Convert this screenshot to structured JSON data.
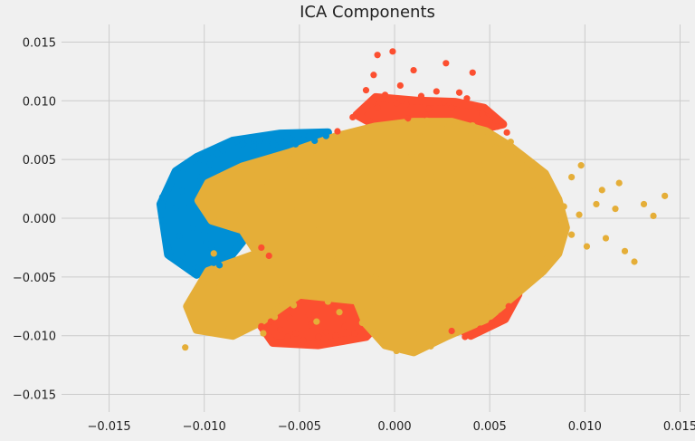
{
  "chart_data": {
    "type": "scatter",
    "title": "ICA Components",
    "xlabel": "",
    "ylabel": "",
    "xlim": [
      -0.0175,
      0.0155
    ],
    "ylim": [
      -0.0165,
      0.0165
    ],
    "xticks": [
      -0.015,
      -0.01,
      -0.005,
      0.0,
      0.005,
      0.01,
      0.015
    ],
    "yticks": [
      -0.015,
      -0.01,
      -0.005,
      0.0,
      0.005,
      0.01,
      0.015
    ],
    "xtick_labels": [
      "−0.015",
      "−0.010",
      "−0.005",
      "0.000",
      "0.005",
      "0.010",
      "0.015"
    ],
    "ytick_labels": [
      "−0.015",
      "−0.010",
      "−0.005",
      "0.000",
      "0.005",
      "0.010",
      "0.015"
    ],
    "grid": true,
    "series": [
      {
        "color": "#008fd5",
        "points": [
          [
            -0.0122,
            0.0018
          ],
          [
            -0.0121,
            -0.0002
          ],
          [
            -0.0119,
            -0.0026
          ],
          [
            -0.0118,
            -0.0033
          ],
          [
            -0.0115,
            0.0009
          ],
          [
            -0.0113,
            -0.0015
          ],
          [
            -0.0112,
            0.0023
          ],
          [
            -0.0111,
            0.0042
          ],
          [
            -0.0109,
            -0.003
          ],
          [
            -0.0108,
            0.0013
          ],
          [
            -0.0106,
            -0.0008
          ],
          [
            -0.0104,
            0.0036
          ],
          [
            -0.0103,
            -0.0042
          ],
          [
            -0.0101,
            0.005
          ],
          [
            -0.0099,
            -0.0021
          ],
          [
            -0.0097,
            0.0046
          ],
          [
            -0.0095,
            -0.0038
          ],
          [
            -0.0093,
            0.0055
          ],
          [
            -0.009,
            0.0058
          ],
          [
            -0.0088,
            -0.003
          ],
          [
            -0.0085,
            0.0062
          ],
          [
            -0.0083,
            0.0049
          ],
          [
            -0.008,
            0.0063
          ],
          [
            -0.0077,
            0.0066
          ],
          [
            -0.0074,
            0.0061
          ],
          [
            -0.0071,
            0.0066
          ],
          [
            -0.0068,
            0.0069
          ],
          [
            -0.0064,
            0.0064
          ],
          [
            -0.0061,
            0.0067
          ],
          [
            -0.0058,
            0.0064
          ],
          [
            -0.0055,
            0.0068
          ],
          [
            -0.0052,
            0.0063
          ],
          [
            -0.0048,
            0.0067
          ],
          [
            -0.0045,
            0.007
          ],
          [
            -0.0042,
            0.0066
          ],
          [
            -0.0039,
            0.0072
          ],
          [
            -0.0036,
            0.007
          ],
          [
            -0.01,
            -0.0012
          ],
          [
            -0.0096,
            -0.0026
          ],
          [
            -0.0092,
            -0.004
          ]
        ]
      },
      {
        "color": "#fc4f30",
        "points": [
          [
            -0.0065,
            -0.0088
          ],
          [
            -0.006,
            -0.0095
          ],
          [
            -0.0056,
            -0.0101
          ],
          [
            -0.0052,
            -0.0098
          ],
          [
            -0.0048,
            -0.0104
          ],
          [
            -0.0044,
            -0.0091
          ],
          [
            -0.004,
            -0.0101
          ],
          [
            -0.0036,
            -0.0097
          ],
          [
            -0.0031,
            -0.01
          ],
          [
            -0.0026,
            -0.0092
          ],
          [
            -0.0021,
            -0.0098
          ],
          [
            -0.0055,
            -0.0085
          ],
          [
            -0.0045,
            -0.0082
          ],
          [
            -0.007,
            -0.0092
          ],
          [
            -0.0009,
            0.0094
          ],
          [
            -0.0005,
            0.0105
          ],
          [
            0.0001,
            0.0098
          ],
          [
            0.0003,
            0.0113
          ],
          [
            0.0006,
            0.0097
          ],
          [
            0.001,
            0.0126
          ],
          [
            0.0014,
            0.0104
          ],
          [
            0.0018,
            0.0093
          ],
          [
            0.0022,
            0.0108
          ],
          [
            0.0026,
            0.0099
          ],
          [
            0.003,
            0.0094
          ],
          [
            0.0034,
            0.0107
          ],
          [
            0.0038,
            0.0102
          ],
          [
            0.0042,
            0.0096
          ],
          [
            0.0046,
            0.0089
          ],
          [
            -0.0009,
            0.0139
          ],
          [
            -0.0001,
            0.0142
          ],
          [
            0.0027,
            0.0132
          ],
          [
            -0.0011,
            0.0122
          ],
          [
            0.0041,
            0.0124
          ],
          [
            -0.0015,
            0.0109
          ],
          [
            0.0007,
            0.0085
          ],
          [
            0.003,
            -0.0096
          ],
          [
            0.0037,
            -0.0101
          ],
          [
            0.0045,
            -0.0094
          ],
          [
            0.0051,
            -0.0089
          ],
          [
            0.0056,
            -0.0083
          ],
          [
            0.006,
            -0.0075
          ],
          [
            -0.007,
            -0.0025
          ],
          [
            -0.0066,
            -0.0032
          ],
          [
            0.0054,
            0.0078
          ],
          [
            0.0059,
            0.0073
          ],
          [
            -0.003,
            0.0074
          ],
          [
            -0.0022,
            0.0086
          ],
          [
            0.0049,
            0.0092
          ],
          [
            0.0016,
            0.0088
          ]
        ]
      },
      {
        "color": "#e5ae38",
        "points": [
          [
            -0.0095,
            -0.003
          ],
          [
            -0.011,
            -0.011
          ],
          [
            -0.0105,
            -0.0091
          ],
          [
            -0.0102,
            -0.0077
          ],
          [
            -0.0098,
            -0.0068
          ],
          [
            -0.0092,
            -0.0059
          ],
          [
            -0.0087,
            -0.0094
          ],
          [
            -0.0081,
            -0.0081
          ],
          [
            -0.0075,
            -0.007
          ],
          [
            -0.0069,
            -0.0098
          ],
          [
            -0.0063,
            -0.0084
          ],
          [
            -0.0059,
            -0.006
          ],
          [
            -0.0053,
            -0.0074
          ],
          [
            -0.0047,
            -0.0066
          ],
          [
            -0.0041,
            -0.0088
          ],
          [
            -0.0035,
            -0.0071
          ],
          [
            -0.0029,
            -0.008
          ],
          [
            -0.0023,
            -0.0063
          ],
          [
            -0.0017,
            -0.0089
          ],
          [
            -0.0011,
            -0.0076
          ],
          [
            -0.0005,
            -0.0069
          ],
          [
            0.0001,
            -0.0113
          ],
          [
            0.0007,
            -0.0104
          ],
          [
            0.0013,
            -0.0098
          ],
          [
            0.0019,
            -0.0109
          ],
          [
            0.0025,
            -0.009
          ],
          [
            0.0031,
            -0.0082
          ],
          [
            0.0037,
            -0.0073
          ],
          [
            0.0043,
            -0.0064
          ],
          [
            0.0049,
            -0.0071
          ],
          [
            0.0055,
            -0.0059
          ],
          [
            0.0061,
            -0.005
          ],
          [
            0.0067,
            -0.0041
          ],
          [
            -0.0083,
            0.0003
          ],
          [
            -0.0079,
            0.0021
          ],
          [
            -0.0075,
            0.004
          ],
          [
            -0.0071,
            0.0012
          ],
          [
            -0.0067,
            0.0031
          ],
          [
            -0.0063,
            -0.0006
          ],
          [
            -0.0059,
            0.0025
          ],
          [
            -0.0055,
            0.0045
          ],
          [
            -0.0051,
            0.0008
          ],
          [
            -0.0047,
            0.0036
          ],
          [
            -0.0043,
            0.0057
          ],
          [
            -0.0039,
            0.0019
          ],
          [
            -0.0035,
            0.0048
          ],
          [
            -0.0031,
            0.0065
          ],
          [
            -0.0027,
            0.0028
          ],
          [
            -0.0023,
            0.0056
          ],
          [
            -0.0019,
            0.0072
          ],
          [
            -0.0015,
            0.0039
          ],
          [
            -0.0011,
            0.0061
          ],
          [
            -0.0007,
            0.0078
          ],
          [
            -0.0003,
            0.0046
          ],
          [
            0.0001,
            0.0069
          ],
          [
            0.0005,
            0.0081
          ],
          [
            0.0009,
            0.0054
          ],
          [
            0.0013,
            0.0073
          ],
          [
            0.0017,
            0.0083
          ],
          [
            0.0021,
            0.0061
          ],
          [
            0.0025,
            0.0077
          ],
          [
            0.0029,
            0.008
          ],
          [
            0.0033,
            0.0059
          ],
          [
            0.0037,
            0.0071
          ],
          [
            0.0041,
            0.0079
          ],
          [
            0.0045,
            0.0066
          ],
          [
            0.0049,
            0.0073
          ],
          [
            0.0053,
            0.006
          ],
          [
            0.0057,
            0.0054
          ],
          [
            0.0061,
            0.0065
          ],
          [
            0.0065,
            0.0047
          ],
          [
            0.0069,
            0.0038
          ],
          [
            0.0073,
            0.0028
          ],
          [
            0.0077,
            0.0015
          ],
          [
            0.0081,
            0.0006
          ],
          [
            0.0085,
            -0.0005
          ],
          [
            0.0089,
            0.001
          ],
          [
            0.0093,
            -0.0014
          ],
          [
            0.0097,
            0.0003
          ],
          [
            0.0101,
            -0.0024
          ],
          [
            0.0106,
            0.0012
          ],
          [
            0.0111,
            -0.0017
          ],
          [
            0.0116,
            0.0008
          ],
          [
            0.0121,
            -0.0028
          ],
          [
            0.0126,
            -0.0037
          ],
          [
            0.0131,
            0.0012
          ],
          [
            0.0136,
            0.0002
          ],
          [
            0.0142,
            0.0019
          ],
          [
            0.0118,
            0.003
          ],
          [
            0.0109,
            0.0024
          ],
          [
            0.0098,
            0.0045
          ],
          [
            0.0093,
            0.0035
          ],
          [
            0.0078,
            -0.003
          ],
          [
            0.0072,
            -0.0051
          ],
          [
            0.0066,
            -0.0061
          ],
          [
            -0.006,
            -0.0025
          ],
          [
            -0.004,
            -0.001
          ],
          [
            -0.002,
            0.0005
          ],
          [
            0.0,
            0.002
          ],
          [
            0.002,
            0.0035
          ],
          [
            0.004,
            0.002
          ],
          [
            0.006,
            0.0005
          ],
          [
            0.003,
            -0.004
          ],
          [
            0.001,
            -0.0055
          ],
          [
            -0.001,
            -0.005
          ],
          [
            -0.003,
            -0.0035
          ],
          [
            0.005,
            -0.003
          ],
          [
            0.007,
            -0.0015
          ],
          [
            -0.008,
            -0.005
          ],
          [
            -0.009,
            0.0
          ],
          [
            0.0035,
            0.0
          ],
          [
            0.0015,
            -0.002
          ],
          [
            -0.0005,
            -0.003
          ],
          [
            0.0045,
            0.0045
          ],
          [
            -0.0045,
            -0.0045
          ]
        ]
      }
    ],
    "blobs": [
      {
        "color": "#008fd5",
        "outline": [
          [
            -0.0123,
            0.0012
          ],
          [
            -0.0119,
            -0.0031
          ],
          [
            -0.0104,
            -0.0048
          ],
          [
            -0.0088,
            -0.0036
          ],
          [
            -0.008,
            -0.002
          ],
          [
            -0.0085,
            0.0015
          ],
          [
            -0.006,
            0.006
          ],
          [
            -0.0035,
            0.0073
          ],
          [
            -0.006,
            0.0072
          ],
          [
            -0.0085,
            0.0066
          ],
          [
            -0.0104,
            0.0052
          ],
          [
            -0.0115,
            0.004
          ]
        ]
      },
      {
        "color": "#fc4f30",
        "outline": [
          [
            -0.0073,
            -0.0085
          ],
          [
            -0.0064,
            -0.0106
          ],
          [
            -0.004,
            -0.0108
          ],
          [
            -0.0015,
            -0.0101
          ],
          [
            -0.0004,
            -0.0082
          ],
          [
            -0.003,
            -0.0063
          ],
          [
            -0.006,
            -0.0066
          ]
        ]
      },
      {
        "color": "#fc4f30",
        "outline": [
          [
            -0.002,
            0.0088
          ],
          [
            -0.001,
            0.0103
          ],
          [
            0.0012,
            0.01
          ],
          [
            0.0032,
            0.0099
          ],
          [
            0.0047,
            0.0094
          ],
          [
            0.0057,
            0.008
          ],
          [
            0.003,
            0.007
          ],
          [
            0.0,
            0.007
          ]
        ]
      },
      {
        "color": "#fc4f30",
        "outline": [
          [
            0.0025,
            -0.0085
          ],
          [
            0.004,
            -0.01
          ],
          [
            0.0058,
            -0.0086
          ],
          [
            0.0065,
            -0.0065
          ],
          [
            0.0045,
            -0.0072
          ]
        ]
      },
      {
        "color": "#e5ae38",
        "outline": [
          [
            -0.0103,
            0.0015
          ],
          [
            -0.0096,
            -0.0002
          ],
          [
            -0.008,
            -0.001
          ],
          [
            -0.0072,
            -0.003
          ],
          [
            -0.0098,
            -0.0045
          ],
          [
            -0.0109,
            -0.0075
          ],
          [
            -0.0104,
            -0.0095
          ],
          [
            -0.0085,
            -0.01
          ],
          [
            -0.007,
            -0.0088
          ],
          [
            -0.005,
            -0.0065
          ],
          [
            -0.002,
            -0.007
          ],
          [
            -0.0015,
            -0.009
          ],
          [
            -0.0005,
            -0.0108
          ],
          [
            0.001,
            -0.0114
          ],
          [
            0.0028,
            -0.01
          ],
          [
            0.0048,
            -0.0086
          ],
          [
            0.0065,
            -0.0063
          ],
          [
            0.0078,
            -0.0045
          ],
          [
            0.0086,
            -0.003
          ],
          [
            0.009,
            -0.0008
          ],
          [
            0.0086,
            0.0016
          ],
          [
            0.0079,
            0.0038
          ],
          [
            0.0068,
            0.0052
          ],
          [
            0.006,
            0.0062
          ],
          [
            0.0048,
            0.0074
          ],
          [
            0.003,
            0.0082
          ],
          [
            0.001,
            0.0082
          ],
          [
            -0.001,
            0.0078
          ],
          [
            -0.003,
            0.007
          ],
          [
            -0.0055,
            0.0056
          ],
          [
            -0.008,
            0.0044
          ],
          [
            -0.0098,
            0.003
          ]
        ]
      }
    ]
  }
}
